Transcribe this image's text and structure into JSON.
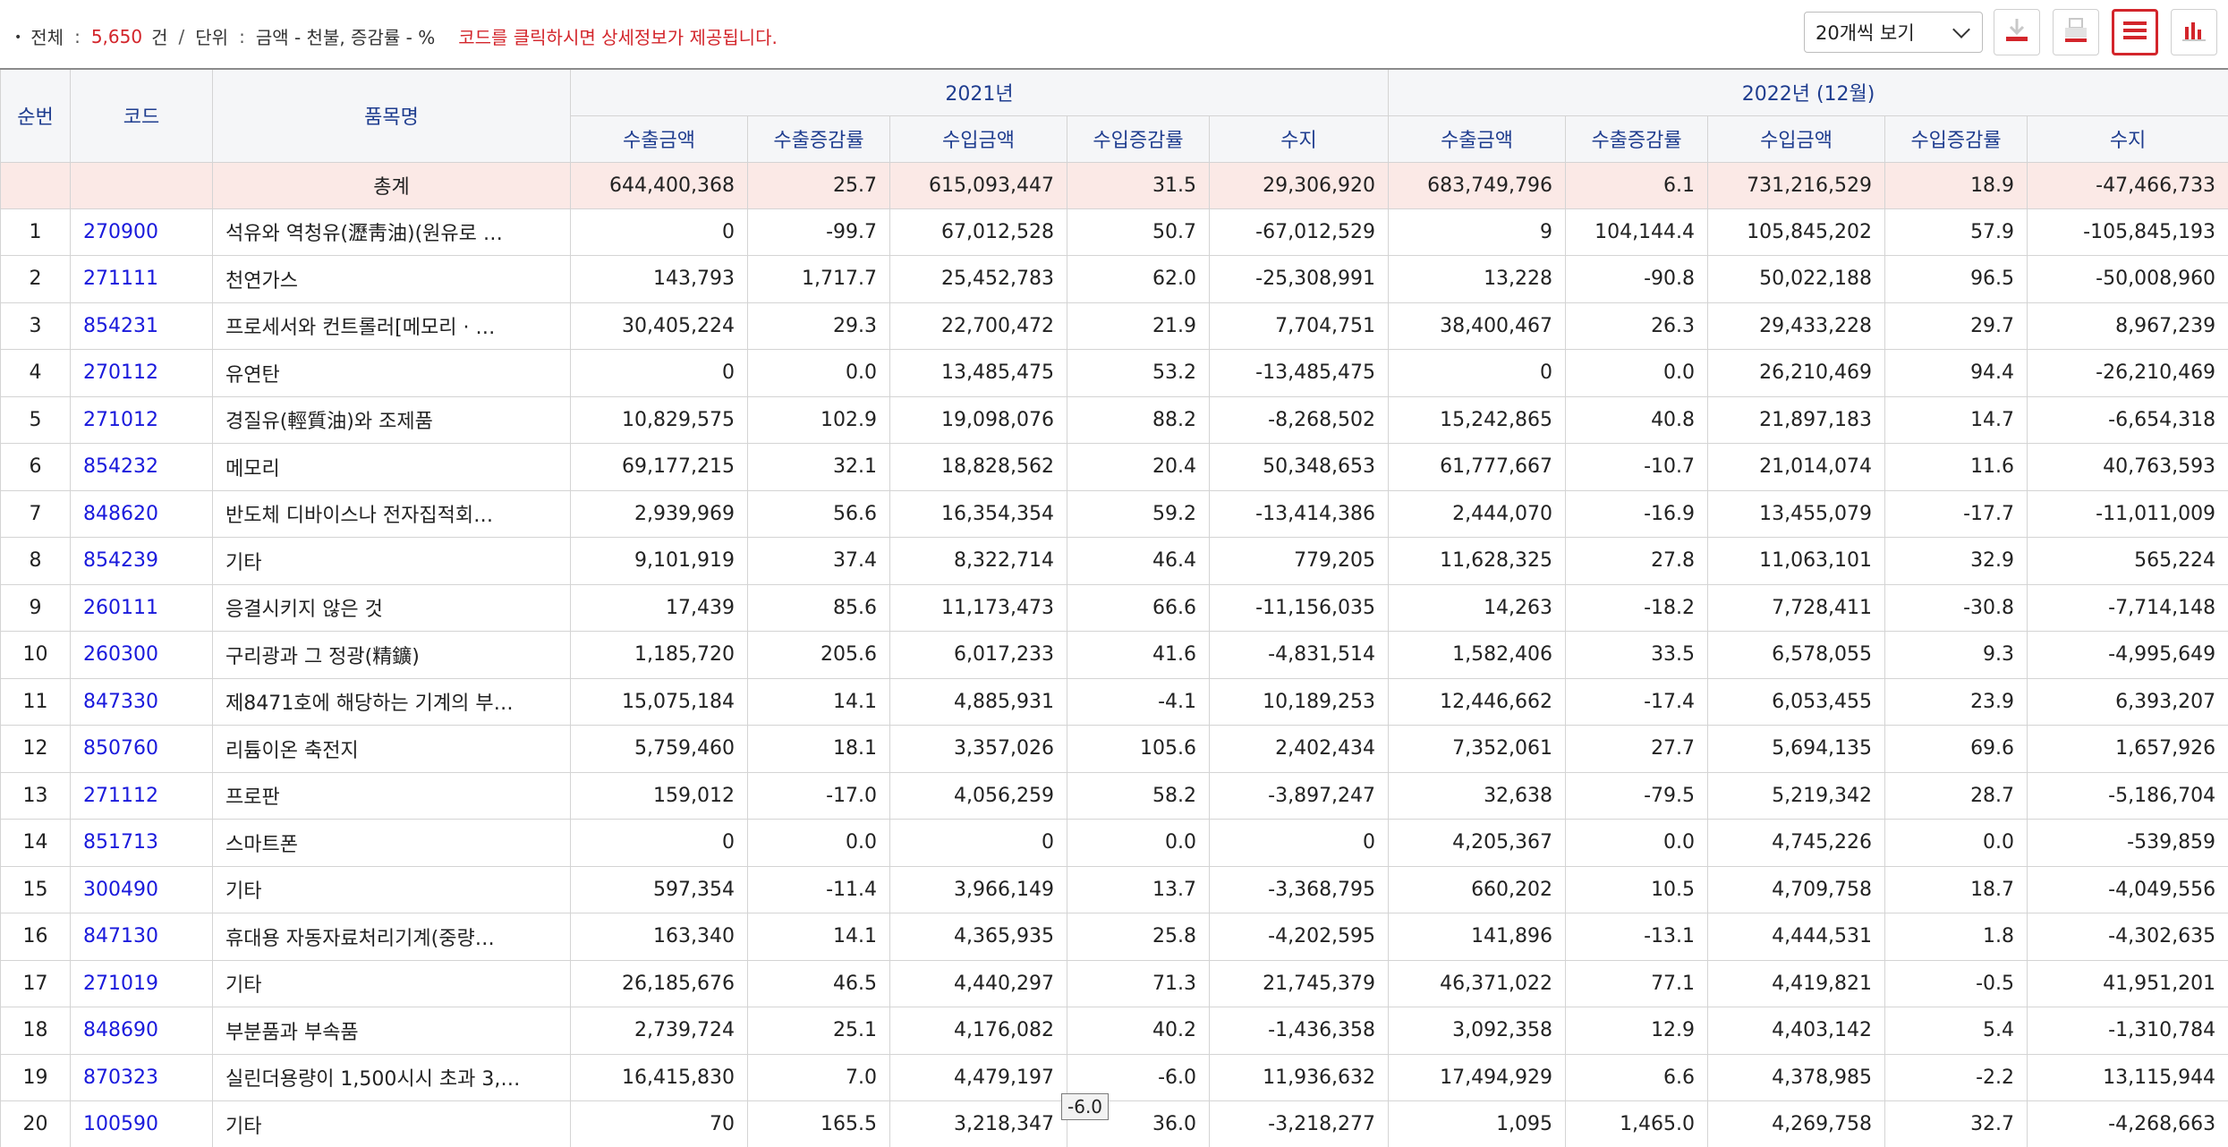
{
  "summary": {
    "total_label": "전체",
    "colon": ":",
    "total_value": "5,650",
    "count_unit": "건",
    "slash": "/",
    "unit_label": "단위",
    "unit_value": "금액 - 천불, 증감률 - %",
    "notice": "코드를 클릭하시면 상세정보가 제공됩니다."
  },
  "page_size": {
    "selected": "20개씩 보기"
  },
  "toolbar": {
    "icons": [
      "download-icon",
      "print-icon",
      "list-view-icon",
      "chart-view-icon"
    ],
    "accent": "#d3252b"
  },
  "headers": {
    "seq": "순번",
    "code": "코드",
    "name": "품목명",
    "period1": "2021년",
    "period2": "2022년 (12월)",
    "sub": [
      "수출금액",
      "수출증감률",
      "수입금액",
      "수입증감률",
      "수지"
    ]
  },
  "total_row": {
    "label": "총계",
    "values": [
      "644,400,368",
      "25.7",
      "615,093,447",
      "31.5",
      "29,306,920",
      "683,749,796",
      "6.1",
      "731,216,529",
      "18.9",
      "-47,466,733"
    ]
  },
  "rows": [
    {
      "seq": "1",
      "code": "270900",
      "name": "석유와 역청유(瀝靑油)(원유로 …",
      "values": [
        "0",
        "-99.7",
        "67,012,528",
        "50.7",
        "-67,012,529",
        "9",
        "104,144.4",
        "105,845,202",
        "57.9",
        "-105,845,193"
      ]
    },
    {
      "seq": "2",
      "code": "271111",
      "name": "천연가스",
      "values": [
        "143,793",
        "1,717.7",
        "25,452,783",
        "62.0",
        "-25,308,991",
        "13,228",
        "-90.8",
        "50,022,188",
        "96.5",
        "-50,008,960"
      ]
    },
    {
      "seq": "3",
      "code": "854231",
      "name": "프로세서와 컨트롤러[메모리 · …",
      "values": [
        "30,405,224",
        "29.3",
        "22,700,472",
        "21.9",
        "7,704,751",
        "38,400,467",
        "26.3",
        "29,433,228",
        "29.7",
        "8,967,239"
      ]
    },
    {
      "seq": "4",
      "code": "270112",
      "name": "유연탄",
      "values": [
        "0",
        "0.0",
        "13,485,475",
        "53.2",
        "-13,485,475",
        "0",
        "0.0",
        "26,210,469",
        "94.4",
        "-26,210,469"
      ]
    },
    {
      "seq": "5",
      "code": "271012",
      "name": "경질유(輕質油)와 조제품",
      "values": [
        "10,829,575",
        "102.9",
        "19,098,076",
        "88.2",
        "-8,268,502",
        "15,242,865",
        "40.8",
        "21,897,183",
        "14.7",
        "-6,654,318"
      ]
    },
    {
      "seq": "6",
      "code": "854232",
      "name": "메모리",
      "values": [
        "69,177,215",
        "32.1",
        "18,828,562",
        "20.4",
        "50,348,653",
        "61,777,667",
        "-10.7",
        "21,014,074",
        "11.6",
        "40,763,593"
      ]
    },
    {
      "seq": "7",
      "code": "848620",
      "name": "반도체 디바이스나 전자집적회…",
      "values": [
        "2,939,969",
        "56.6",
        "16,354,354",
        "59.2",
        "-13,414,386",
        "2,444,070",
        "-16.9",
        "13,455,079",
        "-17.7",
        "-11,011,009"
      ]
    },
    {
      "seq": "8",
      "code": "854239",
      "name": "기타",
      "values": [
        "9,101,919",
        "37.4",
        "8,322,714",
        "46.4",
        "779,205",
        "11,628,325",
        "27.8",
        "11,063,101",
        "32.9",
        "565,224"
      ]
    },
    {
      "seq": "9",
      "code": "260111",
      "name": "응결시키지 않은 것",
      "values": [
        "17,439",
        "85.6",
        "11,173,473",
        "66.6",
        "-11,156,035",
        "14,263",
        "-18.2",
        "7,728,411",
        "-30.8",
        "-7,714,148"
      ]
    },
    {
      "seq": "10",
      "code": "260300",
      "name": "구리광과 그 정광(精鑛)",
      "values": [
        "1,185,720",
        "205.6",
        "6,017,233",
        "41.6",
        "-4,831,514",
        "1,582,406",
        "33.5",
        "6,578,055",
        "9.3",
        "-4,995,649"
      ]
    },
    {
      "seq": "11",
      "code": "847330",
      "name": "제8471호에 해당하는 기계의 부…",
      "values": [
        "15,075,184",
        "14.1",
        "4,885,931",
        "-4.1",
        "10,189,253",
        "12,446,662",
        "-17.4",
        "6,053,455",
        "23.9",
        "6,393,207"
      ]
    },
    {
      "seq": "12",
      "code": "850760",
      "name": "리튬이온 축전지",
      "values": [
        "5,759,460",
        "18.1",
        "3,357,026",
        "105.6",
        "2,402,434",
        "7,352,061",
        "27.7",
        "5,694,135",
        "69.6",
        "1,657,926"
      ]
    },
    {
      "seq": "13",
      "code": "271112",
      "name": "프로판",
      "values": [
        "159,012",
        "-17.0",
        "4,056,259",
        "58.2",
        "-3,897,247",
        "32,638",
        "-79.5",
        "5,219,342",
        "28.7",
        "-5,186,704"
      ]
    },
    {
      "seq": "14",
      "code": "851713",
      "name": "스마트폰",
      "values": [
        "0",
        "0.0",
        "0",
        "0.0",
        "0",
        "4,205,367",
        "0.0",
        "4,745,226",
        "0.0",
        "-539,859"
      ]
    },
    {
      "seq": "15",
      "code": "300490",
      "name": "기타",
      "values": [
        "597,354",
        "-11.4",
        "3,966,149",
        "13.7",
        "-3,368,795",
        "660,202",
        "10.5",
        "4,709,758",
        "18.7",
        "-4,049,556"
      ]
    },
    {
      "seq": "16",
      "code": "847130",
      "name": "휴대용 자동자료처리기계(중량…",
      "values": [
        "163,340",
        "14.1",
        "4,365,935",
        "25.8",
        "-4,202,595",
        "141,896",
        "-13.1",
        "4,444,531",
        "1.8",
        "-4,302,635"
      ]
    },
    {
      "seq": "17",
      "code": "271019",
      "name": "기타",
      "values": [
        "26,185,676",
        "46.5",
        "4,440,297",
        "71.3",
        "21,745,379",
        "46,371,022",
        "77.1",
        "4,419,821",
        "-0.5",
        "41,951,201"
      ]
    },
    {
      "seq": "18",
      "code": "848690",
      "name": "부분품과 부속품",
      "values": [
        "2,739,724",
        "25.1",
        "4,176,082",
        "40.2",
        "-1,436,358",
        "3,092,358",
        "12.9",
        "4,403,142",
        "5.4",
        "-1,310,784"
      ]
    },
    {
      "seq": "19",
      "code": "870323",
      "name": "실린더용량이 1,500시시 초과 3,…",
      "values": [
        "16,415,830",
        "7.0",
        "4,479,197",
        "-6.0",
        "11,936,632",
        "17,494,929",
        "6.6",
        "4,378,985",
        "-2.2",
        "13,115,944"
      ]
    },
    {
      "seq": "20",
      "code": "100590",
      "name": "기타",
      "values": [
        "70",
        "165.5",
        "3,218,347",
        "36.0",
        "-3,218,277",
        "1,095",
        "1,465.0",
        "4,269,758",
        "32.7",
        "-4,268,663"
      ]
    }
  ],
  "tooltip": "-6.0"
}
